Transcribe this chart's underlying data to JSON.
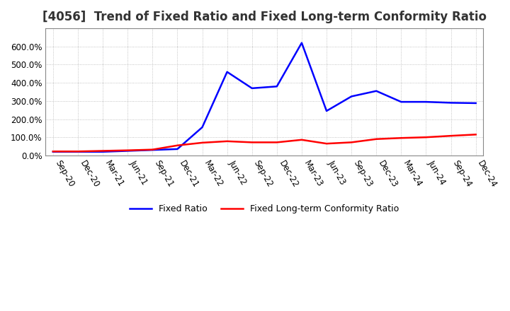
{
  "title": "[4056]  Trend of Fixed Ratio and Fixed Long-term Conformity Ratio",
  "title_fontsize": 12,
  "x_labels": [
    "Sep-20",
    "Dec-20",
    "Mar-21",
    "Jun-21",
    "Sep-21",
    "Dec-21",
    "Mar-22",
    "Jun-22",
    "Sep-22",
    "Dec-22",
    "Mar-23",
    "Jun-23",
    "Sep-23",
    "Dec-23",
    "Mar-24",
    "Jun-24",
    "Sep-24",
    "Dec-24"
  ],
  "fixed_ratio": [
    0.2,
    0.2,
    0.2,
    0.25,
    0.3,
    0.35,
    1.55,
    4.6,
    3.7,
    3.8,
    6.2,
    2.45,
    3.25,
    3.55,
    2.95,
    2.95,
    2.9,
    2.88
  ],
  "fixed_lt_ratio": [
    0.22,
    0.22,
    0.25,
    0.28,
    0.32,
    0.55,
    0.7,
    0.78,
    0.72,
    0.72,
    0.86,
    0.65,
    0.72,
    0.9,
    0.96,
    1.0,
    1.08,
    1.15
  ],
  "ylim_max": 7.0,
  "ytick_vals": [
    0.0,
    1.0,
    2.0,
    3.0,
    4.0,
    5.0,
    6.0
  ],
  "ytick_labels": [
    "0.0%",
    "100.0%",
    "200.0%",
    "300.0%",
    "400.0%",
    "500.0%",
    "600.0%"
  ],
  "fixed_ratio_color": "#0000FF",
  "fixed_lt_ratio_color": "#FF0000",
  "grid_color": "#AAAAAA",
  "background_color": "#FFFFFF",
  "legend_fixed": "Fixed Ratio",
  "legend_lt": "Fixed Long-term Conformity Ratio",
  "tick_label_fontsize": 8.5,
  "legend_fontsize": 9
}
